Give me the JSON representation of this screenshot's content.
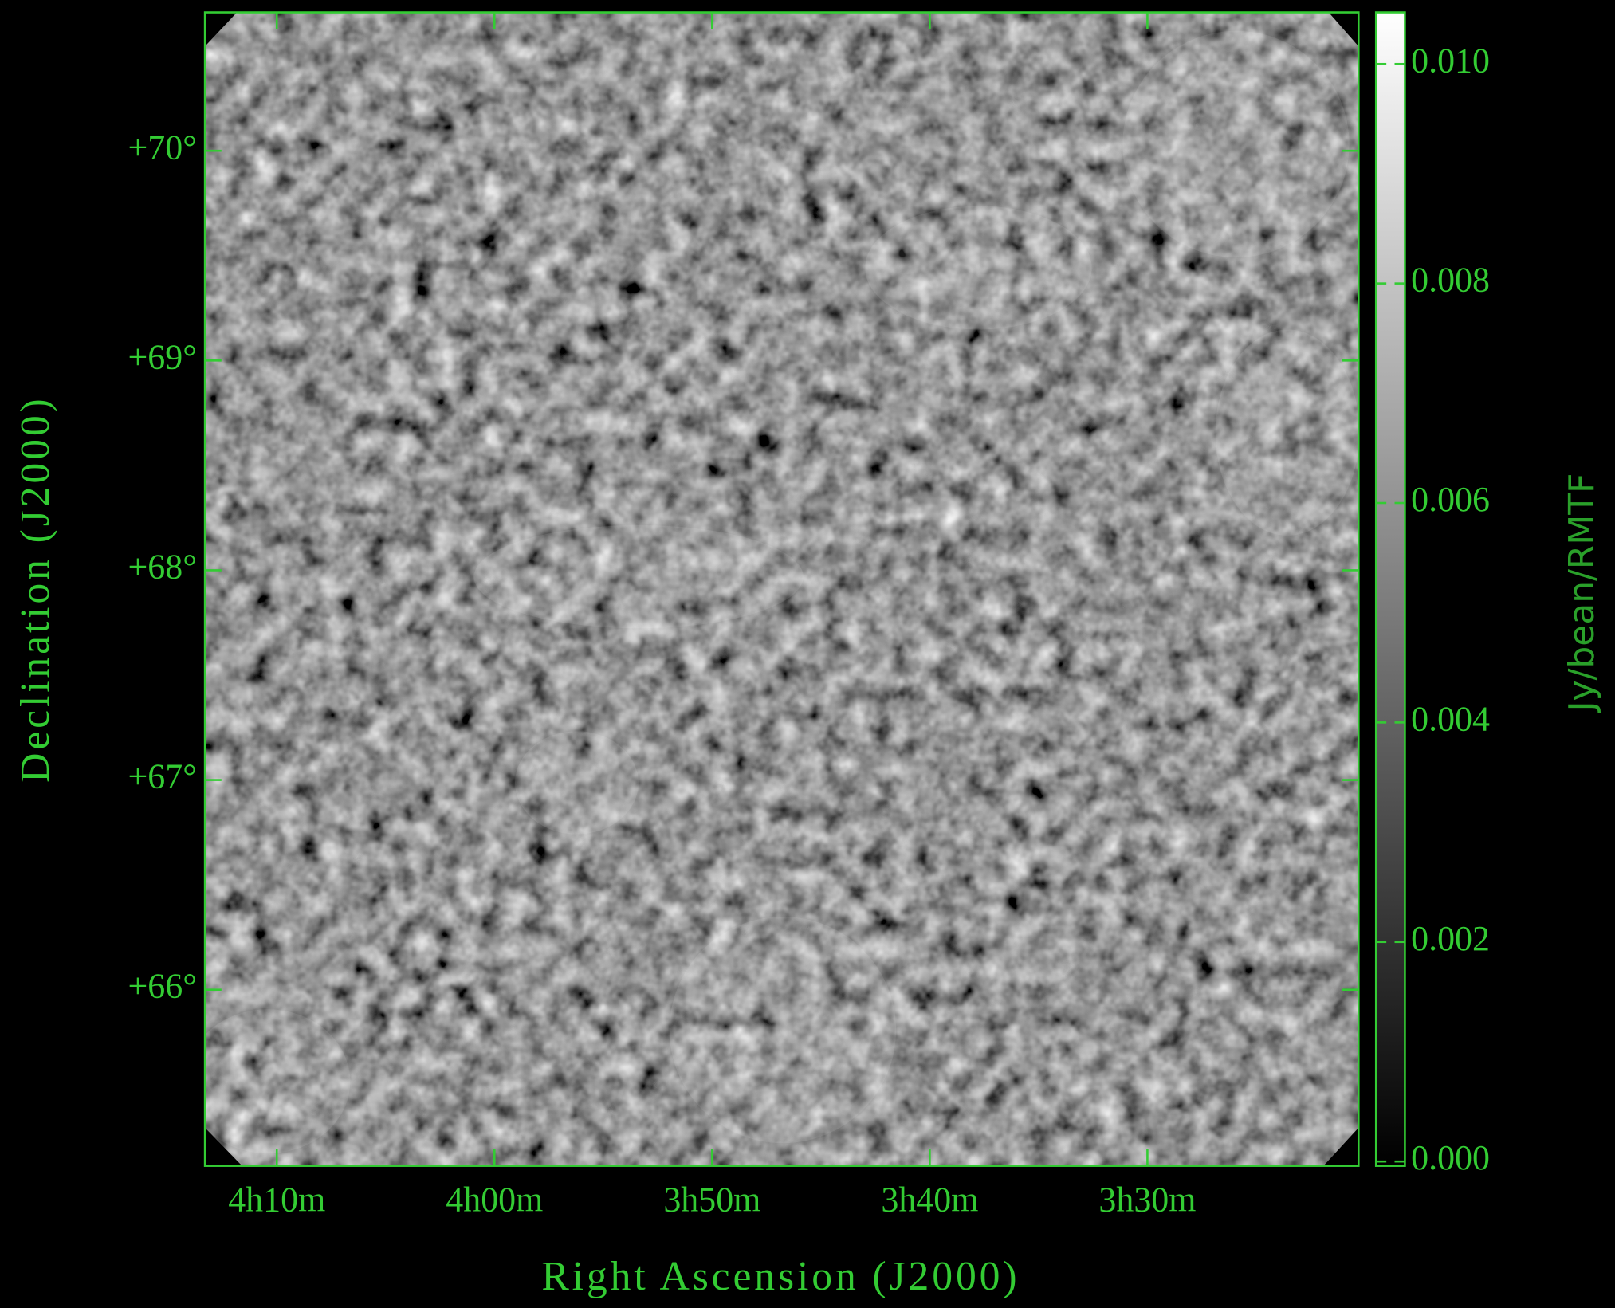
{
  "chart_data": {
    "type": "image",
    "xlabel": "Right Ascension (J2000)",
    "ylabel": "Declination (J2000)",
    "xlim": [
      253.3,
      200.3
    ],
    "ylim": [
      65.16,
      70.66
    ],
    "xticks": [
      {
        "value": 250,
        "label": "4h10m"
      },
      {
        "value": 240,
        "label": "4h00m"
      },
      {
        "value": 230,
        "label": "3h50m"
      },
      {
        "value": 220,
        "label": "3h40m"
      },
      {
        "value": 210,
        "label": "3h30m"
      }
    ],
    "yticks": [
      {
        "value": 66,
        "label": "+66°"
      },
      {
        "value": 67,
        "label": "+67°"
      },
      {
        "value": 68,
        "label": "+68°"
      },
      {
        "value": 69,
        "label": "+69°"
      },
      {
        "value": 70,
        "label": "+70°"
      }
    ],
    "color": "#33cc33",
    "colorbar": {
      "label": "Jy/bean/RMTF",
      "colormap": "gray",
      "lim": [
        -4e-05,
        0.01047
      ],
      "ticks": [
        {
          "value": 0,
          "label": "0.000"
        },
        {
          "value": 0.002,
          "label": "0.002"
        },
        {
          "value": 0.004,
          "label": "0.004"
        },
        {
          "value": 0.006,
          "label": "0.006"
        },
        {
          "value": 0.008,
          "label": "0.008"
        },
        {
          "value": 0.01,
          "label": "0.010"
        }
      ],
      "label_color": "#2aa02a"
    }
  }
}
